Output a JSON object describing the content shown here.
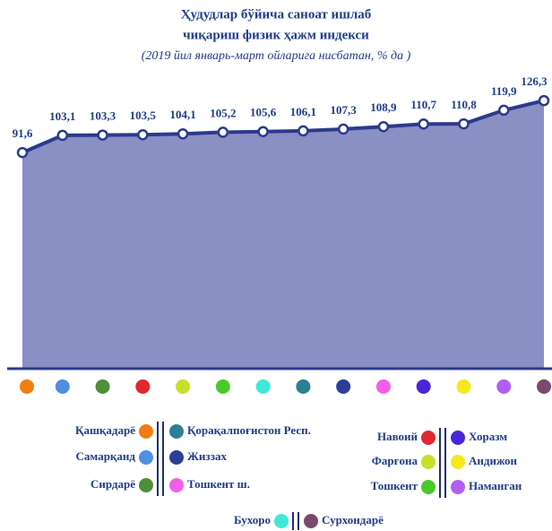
{
  "chart_data": {
    "type": "area",
    "title": [
      "Ҳудудлар бўйича саноат ишлаб",
      "чиқариш физик ҳажм индекси"
    ],
    "subtitle": "(2019 йил январь-март ойларига нисбатан, % да )",
    "categories": [
      "Қашқадарё",
      "Самарқанд",
      "Сирдарё",
      "Навоий",
      "Фарғона",
      "Тошкент",
      "Бухоро",
      "Қорақалпоғистон Респ.",
      "Жиззах",
      "Тошкент ш.",
      "Хоразм",
      "Андижон",
      "Наманган",
      "Сурхондарё"
    ],
    "category_colors": [
      "#f07d12",
      "#4f8fe0",
      "#4e8f3a",
      "#e0282e",
      "#c6e02a",
      "#49c92b",
      "#3ee8d8",
      "#2c7f94",
      "#2b3f99",
      "#f25ee8",
      "#4a24d9",
      "#f5e81c",
      "#b25ef0",
      "#7a4a6a"
    ],
    "values": [
      91.6,
      103.1,
      103.3,
      103.5,
      104.1,
      105.2,
      105.6,
      106.1,
      107.3,
      108.9,
      110.7,
      110.8,
      119.9,
      126.3
    ],
    "value_labels": [
      "91,6",
      "103,1",
      "103,3",
      "103,5",
      "104,1",
      "105,2",
      "105,6",
      "106,1",
      "107,3",
      "108,9",
      "110,7",
      "110,8",
      "119,9",
      "126,3"
    ],
    "color": "#8a8fc4",
    "line_color": "#2b3a8c",
    "ylim": [
      -52,
      130
    ]
  }
}
